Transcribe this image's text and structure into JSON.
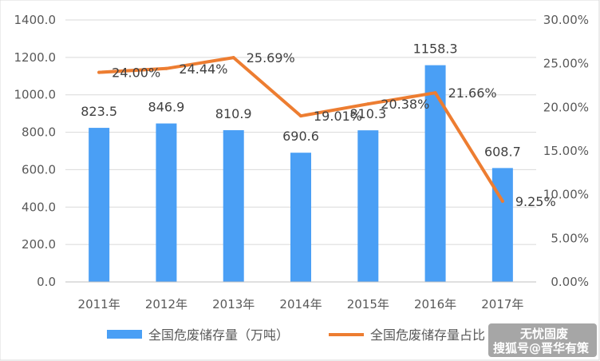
{
  "chart_data": {
    "type": "bar",
    "categories": [
      "2011年",
      "2012年",
      "2013年",
      "2014年",
      "2015年",
      "2016年",
      "2017年"
    ],
    "series": [
      {
        "name": "全国危废储存量（万吨）",
        "type": "bar",
        "axis": "left",
        "values": [
          823.5,
          846.9,
          810.9,
          690.6,
          810.3,
          1158.3,
          608.7
        ],
        "labels": [
          "823.5",
          "846.9",
          "810.9",
          "690.6",
          "810.3",
          "1158.3",
          "608.7"
        ],
        "color": "#4a9ff5"
      },
      {
        "name": "全国危废储存量占比",
        "type": "line",
        "axis": "right",
        "values": [
          24.0,
          24.44,
          25.69,
          19.01,
          20.38,
          21.66,
          9.25
        ],
        "labels": [
          "24.00%",
          "24.44%",
          "25.69%",
          "19.01%",
          "20.38%",
          "21.66%",
          "9.25%"
        ],
        "color": "#ed7d31"
      }
    ],
    "y_left": {
      "range": [
        0,
        1400
      ],
      "ticks": [
        "0.0",
        "200.0",
        "400.0",
        "600.0",
        "800.0",
        "1000.0",
        "1200.0",
        "1400.0"
      ]
    },
    "y_right": {
      "range": [
        0,
        30
      ],
      "ticks": [
        "0.00%",
        "5.00%",
        "10.00%",
        "15.00%",
        "20.00%",
        "25.00%",
        "30.00%"
      ]
    },
    "grid": true,
    "legend": "bottom"
  },
  "watermark": {
    "line1": "无忧固废",
    "line2": "搜狐号@晋华有策"
  }
}
